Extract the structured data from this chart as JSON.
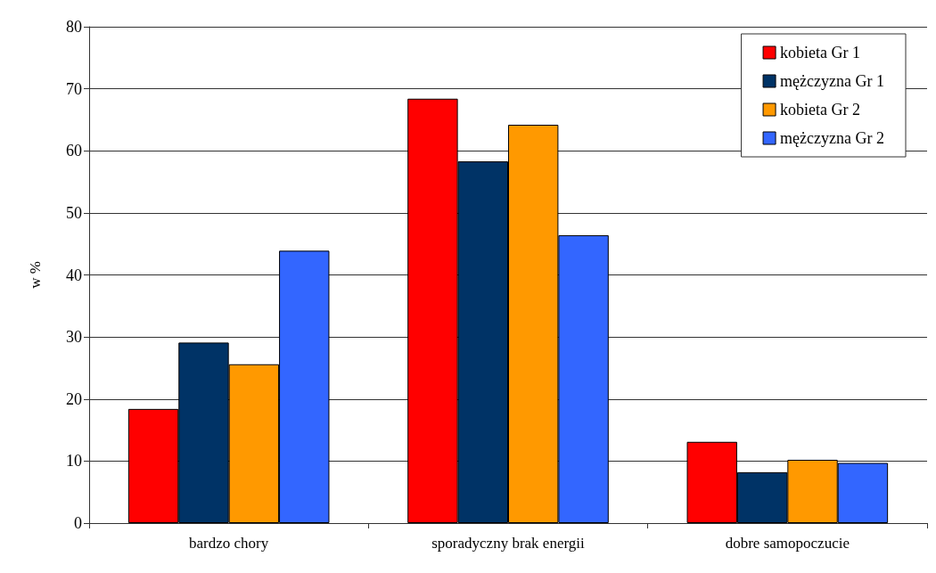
{
  "chart_data": {
    "type": "bar",
    "ylabel": "w %",
    "categories": [
      "bardzo chory",
      "sporadyczny brak energii",
      "dobre samopoczucie"
    ],
    "series": [
      {
        "name": "kobieta Gr 1",
        "color": "#ff0000",
        "values": [
          18.4,
          68.4,
          13.1
        ]
      },
      {
        "name": "mężczyzna Gr 1",
        "color": "#003366",
        "values": [
          29.1,
          58.3,
          8.2
        ]
      },
      {
        "name": "kobieta Gr 2",
        "color": "#ff9900",
        "values": [
          25.6,
          64.2,
          10.2
        ]
      },
      {
        "name": "mężczyzna Gr 2",
        "color": "#3366ff",
        "values": [
          43.9,
          46.4,
          9.7
        ]
      }
    ],
    "ylim": [
      0,
      80
    ],
    "yticks": [
      0,
      10,
      20,
      30,
      40,
      50,
      60,
      70,
      80
    ],
    "grid": "y",
    "legend": "top right"
  }
}
